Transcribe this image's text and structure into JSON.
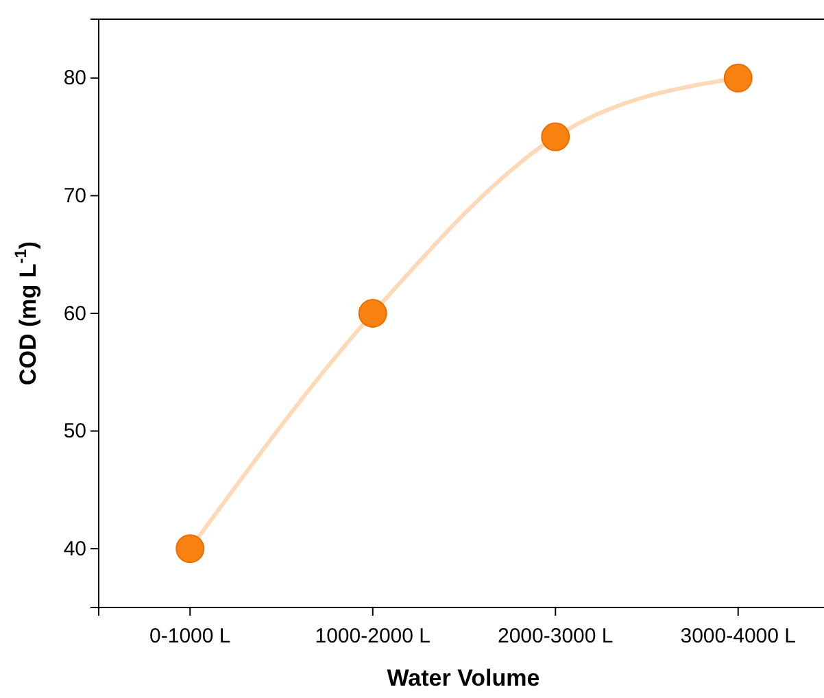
{
  "chart_data": {
    "type": "line",
    "xlabel": "Water Volume",
    "ylabel": "COD (mg L$^{-1}$)",
    "categories": [
      "0-1000 L",
      "1000-2000 L",
      "2000-3000 L",
      "3000-4000 L"
    ],
    "series": [
      {
        "color": "#f7820f",
        "values": [
          40,
          60,
          75,
          80
        ]
      }
    ],
    "ylim": [
      35,
      85
    ],
    "yticks": [
      40,
      50,
      60,
      70,
      80
    ],
    "marker": "circle",
    "grid": false
  }
}
